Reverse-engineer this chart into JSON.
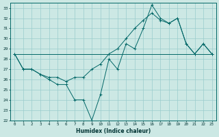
{
  "xlabel": "Humidex (Indice chaleur)",
  "bg_color": "#cce8e4",
  "grid_color": "#99cccc",
  "line_color": "#006666",
  "xlim": [
    -0.5,
    23.5
  ],
  "ylim": [
    22,
    33.5
  ],
  "xticks": [
    0,
    1,
    2,
    3,
    4,
    5,
    6,
    7,
    8,
    9,
    10,
    11,
    12,
    13,
    14,
    15,
    16,
    17,
    18,
    19,
    20,
    21,
    22,
    23
  ],
  "yticks": [
    22,
    23,
    24,
    25,
    26,
    27,
    28,
    29,
    30,
    31,
    32,
    33
  ],
  "series1": [
    28.5,
    27.0,
    27.0,
    26.5,
    26.0,
    25.5,
    25.5,
    24.0,
    24.0,
    22.0,
    24.5,
    28.0,
    27.0,
    29.5,
    29.0,
    31.0,
    33.3,
    32.0,
    31.5,
    32.0,
    29.5,
    28.5,
    29.5,
    28.5
  ],
  "series2": [
    28.5,
    27.0,
    27.0,
    26.5,
    26.2,
    26.2,
    25.8,
    26.2,
    26.2,
    27.0,
    27.5,
    28.5,
    29.0,
    30.0,
    31.0,
    31.8,
    32.5,
    31.8,
    31.5,
    32.0,
    29.5,
    28.5,
    29.5,
    28.5
  ],
  "series3_x": [
    0,
    23
  ],
  "series3_y": [
    28.5,
    28.5
  ],
  "xlabel_fontsize": 5.5,
  "tick_fontsize": 4.2
}
